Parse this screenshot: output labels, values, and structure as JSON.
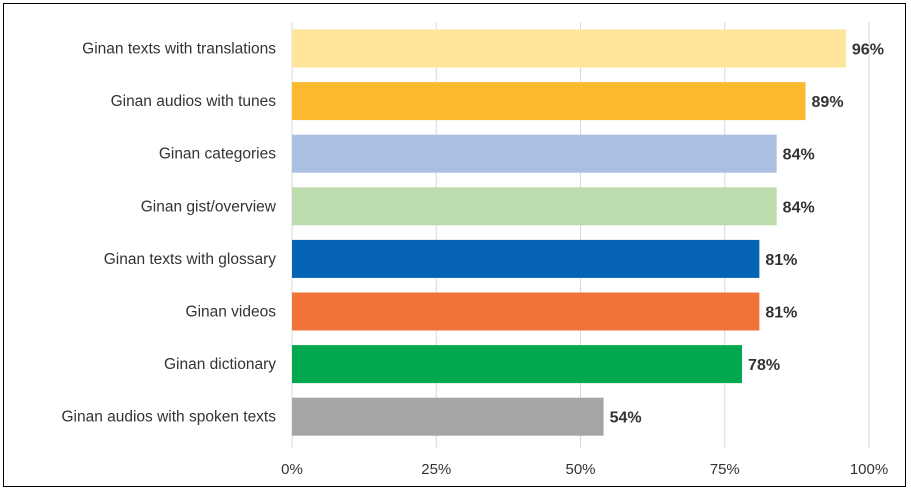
{
  "chart_data": {
    "type": "bar",
    "orientation": "horizontal",
    "categories": [
      "Ginan texts with translations",
      "Ginan audios with tunes",
      "Ginan categories",
      "Ginan gist/overview",
      "Ginan texts with glossary",
      "Ginan videos",
      "Ginan dictionary",
      "Ginan audios with spoken texts"
    ],
    "values": [
      96,
      89,
      84,
      84,
      81,
      81,
      78,
      54
    ],
    "data_labels": [
      "96%",
      "89%",
      "84%",
      "84%",
      "81%",
      "81%",
      "78%",
      "54%"
    ],
    "colors": [
      "#ffe599",
      "#fbb930",
      "#aabfe2",
      "#bcdcad",
      "#0563b5",
      "#f1733a",
      "#00a84f",
      "#a5a5a5"
    ],
    "x_ticks": [
      0,
      25,
      50,
      75,
      100
    ],
    "x_tick_labels": [
      "0%",
      "25%",
      "50%",
      "75%",
      "100%"
    ],
    "xlim": [
      0,
      100
    ],
    "grid": "vertical",
    "title": "",
    "xlabel": "",
    "ylabel": ""
  }
}
